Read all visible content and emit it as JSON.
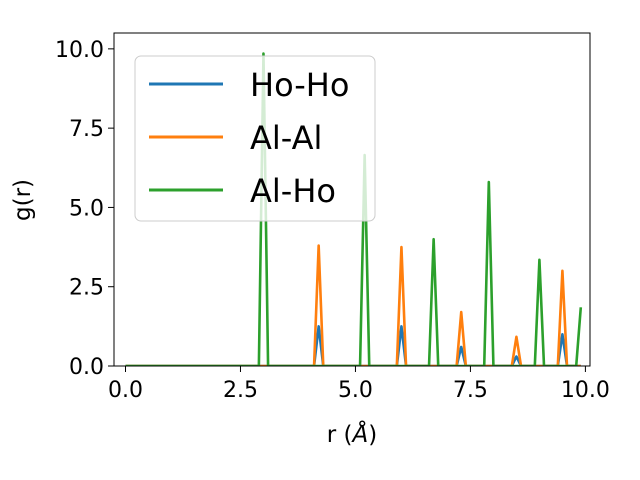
{
  "chart_data": {
    "type": "line",
    "xlabel_text": "r (",
    "xlabel_unit": "Å",
    "xlabel_close": ")",
    "ylabel": "g(r)",
    "xlim": [
      -0.25,
      10.1
    ],
    "ylim": [
      0,
      10.5
    ],
    "xticks": [
      0.0,
      2.5,
      5.0,
      7.5,
      10.0
    ],
    "xtick_labels": [
      "0.0",
      "2.5",
      "5.0",
      "7.5",
      "10.0"
    ],
    "yticks": [
      0.0,
      2.5,
      5.0,
      7.5,
      10.0
    ],
    "ytick_labels": [
      "0.0",
      "2.5",
      "5.0",
      "7.5",
      "10.0"
    ],
    "legend_position": "top-left",
    "series": [
      {
        "name": "Ho-Ho",
        "color": "#1f77b4",
        "points": [
          [
            0,
            0
          ],
          [
            4.1,
            0
          ],
          [
            4.2,
            1.25
          ],
          [
            4.3,
            0
          ],
          [
            5.9,
            0
          ],
          [
            6.0,
            1.25
          ],
          [
            6.1,
            0
          ],
          [
            7.2,
            0
          ],
          [
            7.3,
            0.6
          ],
          [
            7.4,
            0
          ],
          [
            8.4,
            0
          ],
          [
            8.5,
            0.3
          ],
          [
            8.6,
            0
          ],
          [
            9.4,
            0
          ],
          [
            9.5,
            1.0
          ],
          [
            9.6,
            0
          ],
          [
            9.9,
            0
          ]
        ]
      },
      {
        "name": "Al-Al",
        "color": "#ff7f0e",
        "points": [
          [
            0,
            0
          ],
          [
            4.1,
            0
          ],
          [
            4.2,
            3.8
          ],
          [
            4.3,
            0
          ],
          [
            5.9,
            0
          ],
          [
            6.0,
            3.75
          ],
          [
            6.1,
            0
          ],
          [
            7.2,
            0
          ],
          [
            7.3,
            1.7
          ],
          [
            7.4,
            0
          ],
          [
            8.4,
            0
          ],
          [
            8.5,
            0.92
          ],
          [
            8.6,
            0
          ],
          [
            9.4,
            0
          ],
          [
            9.5,
            3.0
          ],
          [
            9.6,
            0
          ],
          [
            9.9,
            0
          ]
        ]
      },
      {
        "name": "Al-Ho",
        "color": "#2ca02c",
        "points": [
          [
            0,
            0
          ],
          [
            2.9,
            0
          ],
          [
            3.0,
            9.85
          ],
          [
            3.1,
            0
          ],
          [
            5.1,
            0
          ],
          [
            5.2,
            6.65
          ],
          [
            5.3,
            0
          ],
          [
            6.6,
            0
          ],
          [
            6.7,
            4.0
          ],
          [
            6.8,
            0
          ],
          [
            7.8,
            0
          ],
          [
            7.9,
            5.8
          ],
          [
            8.0,
            0
          ],
          [
            8.9,
            0
          ],
          [
            9.0,
            3.35
          ],
          [
            9.1,
            0
          ],
          [
            9.8,
            0
          ],
          [
            9.9,
            1.85
          ]
        ]
      }
    ]
  }
}
